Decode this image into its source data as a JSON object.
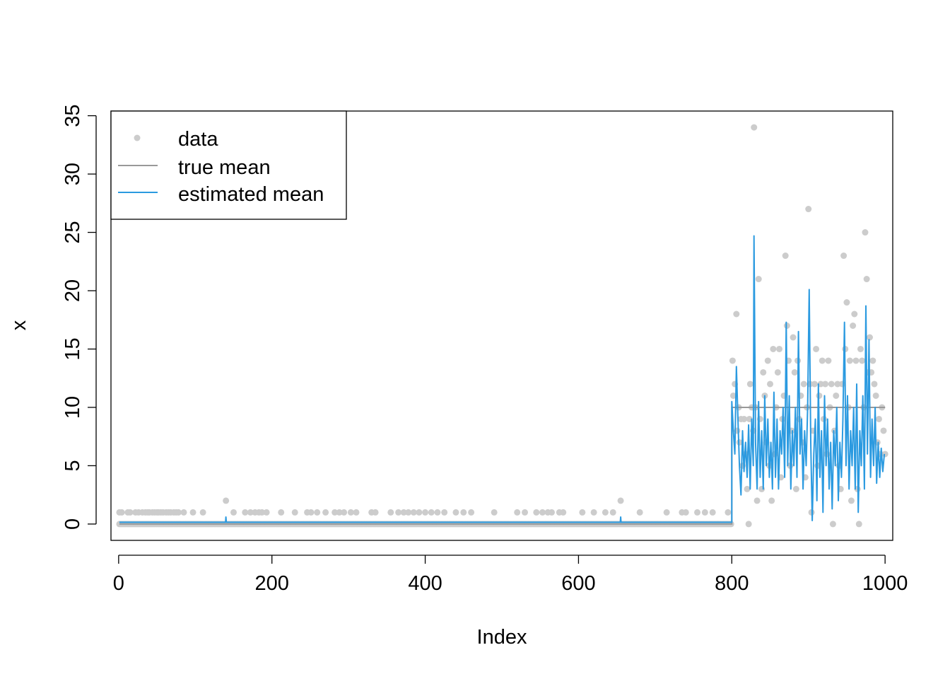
{
  "chart_data": {
    "type": "scatter",
    "xlabel": "Index",
    "ylabel": "x",
    "xlim": [
      -10,
      1010
    ],
    "ylim": [
      -1.4,
      35.4
    ],
    "x_ticks": [
      0,
      200,
      400,
      600,
      800,
      1000
    ],
    "y_ticks": [
      0,
      5,
      10,
      15,
      20,
      25,
      30,
      35
    ],
    "x_tick_labels": [
      "0",
      "200",
      "400",
      "600",
      "800",
      "1000"
    ],
    "y_tick_labels": [
      "0",
      "5",
      "10",
      "15",
      "20",
      "25",
      "30",
      "35"
    ],
    "grid": false,
    "legend_position": "top-left",
    "legend": [
      {
        "label": "data",
        "type": "point",
        "color": "#cccccc"
      },
      {
        "label": "true mean",
        "type": "line",
        "color": "#999999"
      },
      {
        "label": "estimated mean",
        "type": "line",
        "color": "#2b9ae0"
      }
    ],
    "series": [
      {
        "name": "data",
        "type": "scatter",
        "color": "#cccccc",
        "segments": [
          {
            "x_from": 1,
            "x_to": 800,
            "baseline": 0
          },
          {
            "x_from": 801,
            "x_to": 1000
          }
        ],
        "points_value_1_index": [
          1,
          4,
          12,
          15,
          22,
          26,
          31,
          35,
          38,
          40,
          44,
          47,
          50,
          52,
          55,
          58,
          62,
          65,
          68,
          72,
          75,
          78,
          85,
          97,
          110,
          150,
          165,
          172,
          178,
          183,
          187,
          193,
          212,
          230,
          246,
          251,
          259,
          270,
          282,
          288,
          294,
          303,
          310,
          330,
          335,
          355,
          365,
          372,
          378,
          385,
          392,
          400,
          408,
          416,
          425,
          440,
          450,
          460,
          490,
          520,
          530,
          545,
          553,
          560,
          565,
          575,
          580,
          605,
          620,
          635,
          645,
          680,
          715,
          735,
          740,
          755,
          765,
          775,
          795
        ],
        "points_value_2_index": [
          140,
          655
        ],
        "points_after_800": [
          {
            "x": 801,
            "y": 14
          },
          {
            "x": 802,
            "y": 11
          },
          {
            "x": 804,
            "y": 12
          },
          {
            "x": 806,
            "y": 18
          },
          {
            "x": 807,
            "y": 8
          },
          {
            "x": 809,
            "y": 10
          },
          {
            "x": 810,
            "y": 7
          },
          {
            "x": 812,
            "y": 9
          },
          {
            "x": 814,
            "y": 5
          },
          {
            "x": 816,
            "y": 9
          },
          {
            "x": 818,
            "y": 6
          },
          {
            "x": 820,
            "y": 3
          },
          {
            "x": 822,
            "y": 0
          },
          {
            "x": 823,
            "y": 9
          },
          {
            "x": 824,
            "y": 12
          },
          {
            "x": 826,
            "y": 10
          },
          {
            "x": 828,
            "y": 8
          },
          {
            "x": 829,
            "y": 34
          },
          {
            "x": 831,
            "y": 10
          },
          {
            "x": 833,
            "y": 2
          },
          {
            "x": 835,
            "y": 21
          },
          {
            "x": 837,
            "y": 9
          },
          {
            "x": 839,
            "y": 3
          },
          {
            "x": 841,
            "y": 13
          },
          {
            "x": 843,
            "y": 11
          },
          {
            "x": 845,
            "y": 7
          },
          {
            "x": 847,
            "y": 14
          },
          {
            "x": 849,
            "y": 5
          },
          {
            "x": 850,
            "y": 12
          },
          {
            "x": 852,
            "y": 2
          },
          {
            "x": 854,
            "y": 15
          },
          {
            "x": 856,
            "y": 6
          },
          {
            "x": 858,
            "y": 10
          },
          {
            "x": 860,
            "y": 13
          },
          {
            "x": 862,
            "y": 15
          },
          {
            "x": 864,
            "y": 4
          },
          {
            "x": 866,
            "y": 9
          },
          {
            "x": 868,
            "y": 11
          },
          {
            "x": 870,
            "y": 23
          },
          {
            "x": 872,
            "y": 17
          },
          {
            "x": 874,
            "y": 14
          },
          {
            "x": 876,
            "y": 5
          },
          {
            "x": 878,
            "y": 8
          },
          {
            "x": 880,
            "y": 16
          },
          {
            "x": 882,
            "y": 13
          },
          {
            "x": 884,
            "y": 3
          },
          {
            "x": 886,
            "y": 14
          },
          {
            "x": 888,
            "y": 9
          },
          {
            "x": 890,
            "y": 11
          },
          {
            "x": 892,
            "y": 7
          },
          {
            "x": 894,
            "y": 12
          },
          {
            "x": 896,
            "y": 4
          },
          {
            "x": 898,
            "y": 10
          },
          {
            "x": 900,
            "y": 27
          },
          {
            "x": 902,
            "y": 12
          },
          {
            "x": 904,
            "y": 1
          },
          {
            "x": 906,
            "y": 8
          },
          {
            "x": 908,
            "y": 12
          },
          {
            "x": 910,
            "y": 15
          },
          {
            "x": 912,
            "y": 5
          },
          {
            "x": 914,
            "y": 11
          },
          {
            "x": 916,
            "y": 12
          },
          {
            "x": 918,
            "y": 14
          },
          {
            "x": 920,
            "y": 9
          },
          {
            "x": 922,
            "y": 12
          },
          {
            "x": 924,
            "y": 6
          },
          {
            "x": 926,
            "y": 14
          },
          {
            "x": 928,
            "y": 10
          },
          {
            "x": 930,
            "y": 12
          },
          {
            "x": 932,
            "y": 0
          },
          {
            "x": 934,
            "y": 8
          },
          {
            "x": 936,
            "y": 11
          },
          {
            "x": 938,
            "y": 12
          },
          {
            "x": 940,
            "y": 5
          },
          {
            "x": 942,
            "y": 3
          },
          {
            "x": 944,
            "y": 12
          },
          {
            "x": 946,
            "y": 23
          },
          {
            "x": 948,
            "y": 15
          },
          {
            "x": 950,
            "y": 19
          },
          {
            "x": 952,
            "y": 10
          },
          {
            "x": 954,
            "y": 14
          },
          {
            "x": 956,
            "y": 2
          },
          {
            "x": 958,
            "y": 17
          },
          {
            "x": 960,
            "y": 18
          },
          {
            "x": 962,
            "y": 14
          },
          {
            "x": 964,
            "y": 3
          },
          {
            "x": 966,
            "y": 0
          },
          {
            "x": 968,
            "y": 15
          },
          {
            "x": 970,
            "y": 14
          },
          {
            "x": 972,
            "y": 10
          },
          {
            "x": 974,
            "y": 25
          },
          {
            "x": 976,
            "y": 21
          },
          {
            "x": 978,
            "y": 13
          },
          {
            "x": 980,
            "y": 16
          },
          {
            "x": 982,
            "y": 13
          },
          {
            "x": 984,
            "y": 14
          },
          {
            "x": 986,
            "y": 12
          },
          {
            "x": 988,
            "y": 11
          },
          {
            "x": 990,
            "y": 7
          },
          {
            "x": 992,
            "y": 9
          },
          {
            "x": 994,
            "y": 6
          },
          {
            "x": 996,
            "y": 10
          },
          {
            "x": 998,
            "y": 8
          },
          {
            "x": 1000,
            "y": 6
          }
        ]
      },
      {
        "name": "true mean",
        "type": "step",
        "color": "#999999",
        "x": [
          1,
          800,
          800,
          1000
        ],
        "y": [
          0,
          0,
          10,
          10
        ]
      },
      {
        "name": "estimated mean",
        "type": "line",
        "color": "#2b9ae0",
        "segment_before_800": {
          "x_from": 1,
          "x_to": 800,
          "level": 0.15,
          "spikes": [
            {
              "x": 140,
              "y": 0.6
            },
            {
              "x": 655,
              "y": 0.6
            }
          ]
        },
        "points_after_800": [
          {
            "x": 800,
            "y": 0.2
          },
          {
            "x": 800,
            "y": 10.5
          },
          {
            "x": 802,
            "y": 8
          },
          {
            "x": 804,
            "y": 6
          },
          {
            "x": 806,
            "y": 13.5
          },
          {
            "x": 808,
            "y": 9
          },
          {
            "x": 810,
            "y": 5
          },
          {
            "x": 812,
            "y": 2.5
          },
          {
            "x": 814,
            "y": 8
          },
          {
            "x": 816,
            "y": 4.5
          },
          {
            "x": 818,
            "y": 7
          },
          {
            "x": 820,
            "y": 4
          },
          {
            "x": 822,
            "y": 8.5
          },
          {
            "x": 824,
            "y": 3
          },
          {
            "x": 826,
            "y": 9
          },
          {
            "x": 828,
            "y": 5
          },
          {
            "x": 829,
            "y": 24.7
          },
          {
            "x": 831,
            "y": 7
          },
          {
            "x": 833,
            "y": 3
          },
          {
            "x": 835,
            "y": 10.5
          },
          {
            "x": 837,
            "y": 4
          },
          {
            "x": 839,
            "y": 8
          },
          {
            "x": 841,
            "y": 3
          },
          {
            "x": 843,
            "y": 11
          },
          {
            "x": 845,
            "y": 5
          },
          {
            "x": 847,
            "y": 9
          },
          {
            "x": 849,
            "y": 4
          },
          {
            "x": 851,
            "y": 7
          },
          {
            "x": 853,
            "y": 3
          },
          {
            "x": 855,
            "y": 11.3
          },
          {
            "x": 857,
            "y": 4
          },
          {
            "x": 859,
            "y": 9
          },
          {
            "x": 861,
            "y": 3
          },
          {
            "x": 863,
            "y": 8
          },
          {
            "x": 865,
            "y": 6
          },
          {
            "x": 867,
            "y": 10
          },
          {
            "x": 869,
            "y": 4
          },
          {
            "x": 871,
            "y": 17.3
          },
          {
            "x": 873,
            "y": 5
          },
          {
            "x": 875,
            "y": 11
          },
          {
            "x": 877,
            "y": 3
          },
          {
            "x": 879,
            "y": 8
          },
          {
            "x": 881,
            "y": 5
          },
          {
            "x": 883,
            "y": 10
          },
          {
            "x": 885,
            "y": 4
          },
          {
            "x": 887,
            "y": 16.5
          },
          {
            "x": 889,
            "y": 6
          },
          {
            "x": 891,
            "y": 9
          },
          {
            "x": 893,
            "y": 3
          },
          {
            "x": 895,
            "y": 8
          },
          {
            "x": 897,
            "y": 5
          },
          {
            "x": 899,
            "y": 10
          },
          {
            "x": 901,
            "y": 20.1
          },
          {
            "x": 903,
            "y": 7
          },
          {
            "x": 905,
            "y": 0.3
          },
          {
            "x": 907,
            "y": 6
          },
          {
            "x": 909,
            "y": 9
          },
          {
            "x": 911,
            "y": 2
          },
          {
            "x": 913,
            "y": 12
          },
          {
            "x": 915,
            "y": 4
          },
          {
            "x": 917,
            "y": 8
          },
          {
            "x": 919,
            "y": 1
          },
          {
            "x": 921,
            "y": 11
          },
          {
            "x": 923,
            "y": 5
          },
          {
            "x": 925,
            "y": 9
          },
          {
            "x": 927,
            "y": 3
          },
          {
            "x": 929,
            "y": 7
          },
          {
            "x": 931,
            "y": 1.3
          },
          {
            "x": 933,
            "y": 8
          },
          {
            "x": 935,
            "y": 5
          },
          {
            "x": 937,
            "y": 10
          },
          {
            "x": 939,
            "y": 2
          },
          {
            "x": 941,
            "y": 7
          },
          {
            "x": 943,
            "y": 4
          },
          {
            "x": 945,
            "y": 9
          },
          {
            "x": 947,
            "y": 17.3
          },
          {
            "x": 949,
            "y": 5
          },
          {
            "x": 951,
            "y": 11
          },
          {
            "x": 953,
            "y": 3
          },
          {
            "x": 955,
            "y": 8
          },
          {
            "x": 957,
            "y": 5
          },
          {
            "x": 959,
            "y": 10
          },
          {
            "x": 961,
            "y": 3
          },
          {
            "x": 963,
            "y": 12
          },
          {
            "x": 965,
            "y": 1
          },
          {
            "x": 967,
            "y": 8
          },
          {
            "x": 969,
            "y": 5
          },
          {
            "x": 971,
            "y": 11
          },
          {
            "x": 973,
            "y": 3
          },
          {
            "x": 975,
            "y": 18.7
          },
          {
            "x": 977,
            "y": 6
          },
          {
            "x": 979,
            "y": 15.8
          },
          {
            "x": 981,
            "y": 4
          },
          {
            "x": 983,
            "y": 9
          },
          {
            "x": 985,
            "y": 5
          },
          {
            "x": 987,
            "y": 10
          },
          {
            "x": 989,
            "y": 3.5
          },
          {
            "x": 991,
            "y": 7
          },
          {
            "x": 993,
            "y": 4
          },
          {
            "x": 995,
            "y": 6.5
          },
          {
            "x": 997,
            "y": 4.5
          },
          {
            "x": 999,
            "y": 6
          }
        ]
      }
    ]
  }
}
